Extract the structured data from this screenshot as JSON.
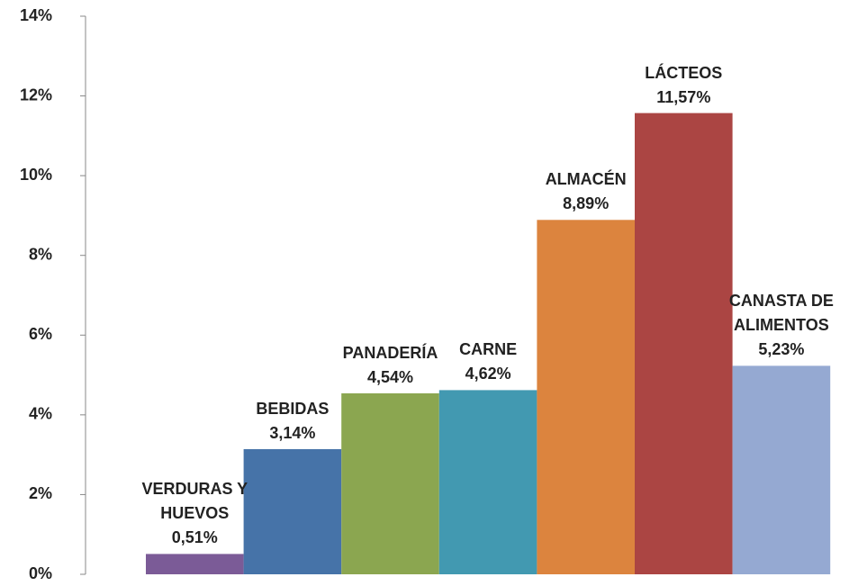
{
  "chart_data": {
    "type": "bar",
    "categories": [
      "VERDURAS Y HUEVOS",
      "BEBIDAS",
      "PANADERÍA",
      "CARNE",
      "ALMACÉN",
      "LÁCTEOS",
      "CANASTA DE ALIMENTOS"
    ],
    "values": [
      0.51,
      3.14,
      4.54,
      4.62,
      8.89,
      11.57,
      5.23
    ],
    "value_labels": [
      "0,51%",
      "3,14%",
      "4,54%",
      "4,62%",
      "8,89%",
      "11,57%",
      "5,23%"
    ],
    "colors": [
      "#7b5b97",
      "#4673a8",
      "#8ba650",
      "#4299b1",
      "#dc843e",
      "#ab4543",
      "#95a9d2"
    ],
    "ylim": [
      0,
      14
    ],
    "yticks": [
      {
        "value": 0,
        "label": "0%"
      },
      {
        "value": 2,
        "label": "2%"
      },
      {
        "value": 4,
        "label": "4%"
      },
      {
        "value": 6,
        "label": "6%"
      },
      {
        "value": 8,
        "label": "8%"
      },
      {
        "value": 10,
        "label": "10%"
      },
      {
        "value": 12,
        "label": "12%"
      },
      {
        "value": 14,
        "label": "14%"
      }
    ],
    "grid": false
  }
}
